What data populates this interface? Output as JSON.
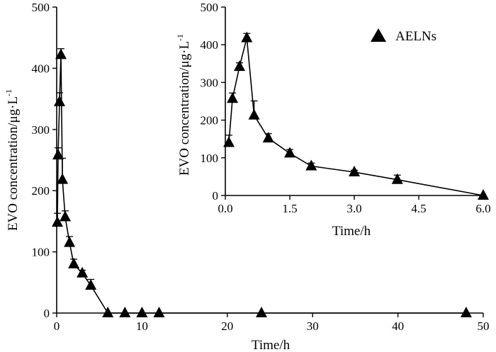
{
  "chart_data": [
    {
      "type": "line",
      "panel": "main",
      "xlabel": "Time/h",
      "ylabel": "EVO concentration/μg·L",
      "ylabel_superscript": "-1",
      "xlim": [
        0,
        50
      ],
      "ylim": [
        0,
        500
      ],
      "xticks": [
        0,
        10,
        20,
        30,
        40,
        50
      ],
      "yticks": [
        0,
        100,
        200,
        300,
        400,
        500
      ],
      "xtick_labels": [
        "0",
        "10",
        "20",
        "30",
        "40",
        "50"
      ],
      "ytick_labels": [
        "0",
        "100",
        "200",
        "300",
        "400",
        "500"
      ],
      "grid": false,
      "series": [
        {
          "x": [
            0.083,
            0.167,
            0.33,
            0.5,
            0.67,
            1,
            1.5,
            2,
            3,
            4,
            6,
            8,
            10,
            12,
            24,
            48
          ],
          "values": [
            148,
            258,
            345,
            422,
            218,
            157,
            115,
            80,
            65,
            45,
            0,
            0,
            0,
            0,
            0,
            0
          ],
          "errors": [
            15,
            12,
            15,
            10,
            35,
            10,
            10,
            8,
            5,
            10,
            0,
            0,
            0,
            0,
            0,
            0
          ],
          "marker": "triangle"
        }
      ]
    },
    {
      "type": "line",
      "panel": "inset",
      "xlabel": "Time/h",
      "ylabel": "EVO concentration/μg·L",
      "ylabel_superscript": "-1",
      "xlim": [
        0,
        6
      ],
      "ylim": [
        0,
        500
      ],
      "xticks": [
        0,
        1.5,
        3,
        4.5,
        6
      ],
      "yticks": [
        0,
        100,
        200,
        300,
        400,
        500
      ],
      "xtick_labels": [
        "0.0",
        "1.5",
        "3.0",
        "4.5",
        "6.0"
      ],
      "ytick_labels": [
        "0",
        "100",
        "200",
        "300",
        "400",
        "500"
      ],
      "grid": false,
      "legend": {
        "placement": "top-right",
        "entries": [
          "AELNs"
        ]
      },
      "series": [
        {
          "name": "AELNs",
          "x": [
            0.083,
            0.167,
            0.33,
            0.5,
            0.67,
            1,
            1.5,
            2,
            3,
            4,
            6
          ],
          "values": [
            140,
            257,
            342,
            418,
            213,
            152,
            112,
            78,
            62,
            42,
            0
          ],
          "errors": [
            20,
            15,
            10,
            12,
            38,
            12,
            10,
            8,
            5,
            12,
            0
          ],
          "marker": "triangle"
        }
      ]
    }
  ]
}
